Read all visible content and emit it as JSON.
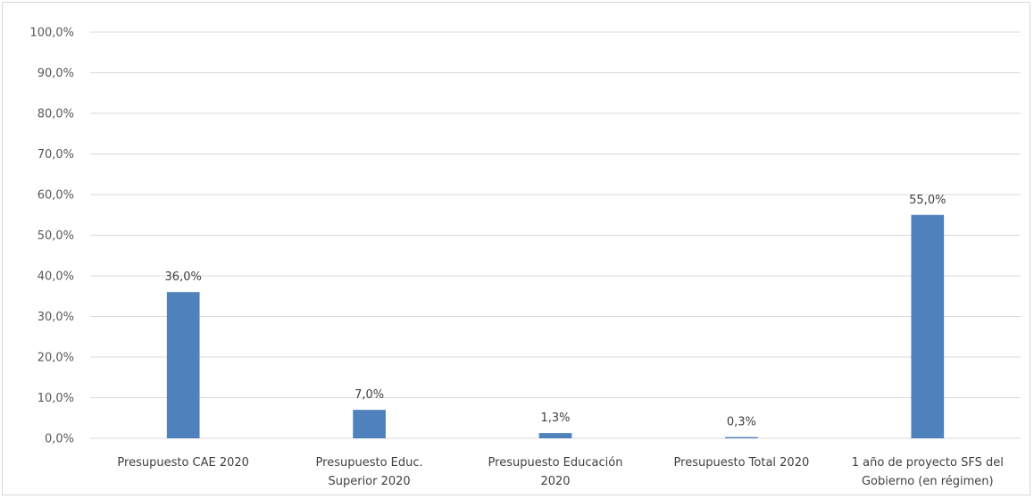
{
  "chart_data": {
    "type": "bar",
    "title": "",
    "xlabel": "",
    "ylabel": "",
    "categories": [
      [
        "Presupuesto CAE 2020"
      ],
      [
        "Presupuesto Educ.",
        "Superior 2020"
      ],
      [
        "Presupuesto Educación",
        "2020"
      ],
      [
        "Presupuesto Total 2020"
      ],
      [
        "1 año de proyecto SFS del",
        "Gobierno (en régimen)"
      ]
    ],
    "values": [
      36.0,
      7.0,
      1.3,
      0.3,
      55.0
    ],
    "data_labels": [
      "36,0%",
      "7,0%",
      "1,3%",
      "0,3%",
      "55,0%"
    ],
    "ylim": [
      0,
      100
    ],
    "yticks": [
      0,
      10,
      20,
      30,
      40,
      50,
      60,
      70,
      80,
      90,
      100
    ],
    "ytick_labels": [
      "0,0%",
      "10,0%",
      "20,0%",
      "30,0%",
      "40,0%",
      "50,0%",
      "60,0%",
      "70,0%",
      "80,0%",
      "90,0%",
      "100,0%"
    ],
    "grid": true,
    "legend": "none",
    "bar_color": "#4f81bd",
    "grid_color": "#d9d9d9"
  }
}
